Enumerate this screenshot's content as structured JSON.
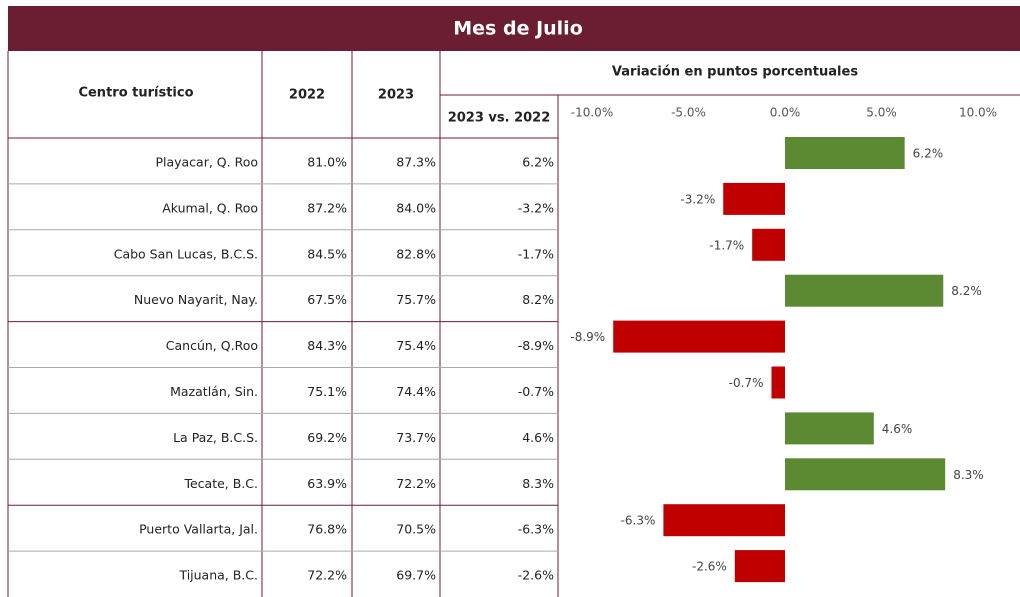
{
  "title": "Mes de Julio",
  "table": {
    "headers": [
      "Centro turístico",
      "2022",
      "2023"
    ],
    "group_header": "Variación en puntos porcentuales",
    "sub_header": "2023 vs. 2022",
    "rows": [
      [
        "Playacar, Q. Roo",
        "81.0%",
        "87.3%",
        "6.2%"
      ],
      [
        "Akumal, Q. Roo",
        "87.2%",
        "84.0%",
        "-3.2%"
      ],
      [
        "Cabo San Lucas, B.C.S.",
        "84.5%",
        "82.8%",
        "-1.7%"
      ],
      [
        "Nuevo Nayarit, Nay.",
        "67.5%",
        "75.7%",
        "8.2%"
      ],
      [
        "Cancún, Q.Roo",
        "84.3%",
        "75.4%",
        "-8.9%"
      ],
      [
        "Mazatlán, Sin.",
        "75.1%",
        "74.4%",
        "-0.7%"
      ],
      [
        "La Paz, B.C.S.",
        "69.2%",
        "73.7%",
        "4.6%"
      ],
      [
        "Tecate, B.C.",
        "63.9%",
        "72.2%",
        "8.3%"
      ],
      [
        "Puerto Vallarta, Jal.",
        "76.8%",
        "70.5%",
        "-6.3%"
      ],
      [
        "Tijuana, B.C.",
        "72.2%",
        "69.7%",
        "-2.6%"
      ]
    ]
  },
  "chart_data": {
    "type": "bar",
    "orientation": "horizontal",
    "values": [
      6.2,
      -3.2,
      -1.7,
      8.2,
      -8.9,
      -0.7,
      4.6,
      8.3,
      -6.3,
      -2.6
    ],
    "value_labels": [
      "6.2%",
      "-3.2%",
      "-1.7%",
      "8.2%",
      "-8.9%",
      "-0.7%",
      "4.6%",
      "8.3%",
      "-6.3%",
      "-2.6%"
    ],
    "xlim": [
      -10,
      10
    ],
    "xticks": [
      {
        "value": -10,
        "label": "-10.0%"
      },
      {
        "value": -5,
        "label": "-5.0%"
      },
      {
        "value": 0,
        "label": "0.0%"
      },
      {
        "value": 5,
        "label": "5.0%"
      },
      {
        "value": 10,
        "label": "10.0%"
      }
    ],
    "positive_color": "#5b8a32",
    "negative_color": "#c00000"
  }
}
